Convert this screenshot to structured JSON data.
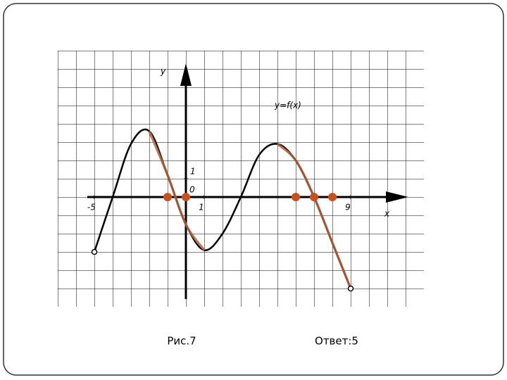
{
  "chart_data": {
    "type": "line",
    "x": [
      -5,
      -4,
      -3,
      -2,
      -1,
      0,
      1,
      2,
      3,
      4,
      5,
      6,
      7,
      8,
      9
    ],
    "series": [
      {
        "color": "#000000",
        "values": [
          -3,
          0,
          2.9,
          3.6,
          1.2,
          -1.5,
          -2.9,
          -2,
          0,
          2.3,
          2.9,
          2,
          0,
          -2.5,
          -5
        ]
      },
      {
        "color": "#b5653f",
        "values": [
          null,
          null,
          null,
          3.6,
          1.2,
          -1.5,
          -2.9,
          null,
          null,
          null,
          2.9,
          2,
          0,
          -2.5,
          -5
        ]
      }
    ],
    "points": {
      "color": "#c8501e",
      "x": [
        -1,
        0,
        6,
        7,
        8
      ],
      "y": [
        0,
        0,
        0,
        0,
        0
      ]
    },
    "xlim": [
      -7,
      13
    ],
    "ylim": [
      -6,
      8
    ],
    "xticks": [
      -5,
      1,
      9
    ],
    "yticks": [
      1
    ],
    "origin_label": "0",
    "xlabel": "x",
    "ylabel": "y",
    "annotation": "y=f(x)",
    "caption": "Рис.7",
    "answer": "Ответ:5",
    "grid": true
  }
}
